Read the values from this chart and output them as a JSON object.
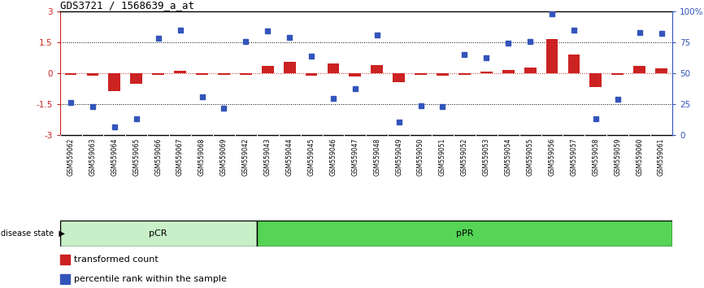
{
  "title": "GDS3721 / 1568639_a_at",
  "samples": [
    "GSM559062",
    "GSM559063",
    "GSM559064",
    "GSM559065",
    "GSM559066",
    "GSM559067",
    "GSM559068",
    "GSM559069",
    "GSM559042",
    "GSM559043",
    "GSM559044",
    "GSM559045",
    "GSM559046",
    "GSM559047",
    "GSM559048",
    "GSM559049",
    "GSM559050",
    "GSM559051",
    "GSM559052",
    "GSM559053",
    "GSM559054",
    "GSM559055",
    "GSM559056",
    "GSM559057",
    "GSM559058",
    "GSM559059",
    "GSM559060",
    "GSM559061"
  ],
  "bar_values": [
    -0.05,
    -0.1,
    -0.85,
    -0.5,
    -0.05,
    0.12,
    -0.05,
    -0.05,
    -0.05,
    0.35,
    0.55,
    -0.1,
    0.5,
    -0.15,
    0.42,
    -0.42,
    -0.05,
    -0.12,
    -0.05,
    0.1,
    0.18,
    0.28,
    1.65,
    0.9,
    -0.65,
    -0.05,
    0.35,
    0.25
  ],
  "dot_values": [
    -1.4,
    -1.6,
    -2.6,
    -2.2,
    1.7,
    2.1,
    -1.15,
    -1.7,
    1.55,
    2.05,
    1.75,
    0.85,
    -1.2,
    -0.75,
    1.85,
    -2.35,
    -1.55,
    -1.6,
    0.9,
    0.75,
    1.45,
    1.55,
    2.9,
    2.1,
    -2.2,
    -1.25,
    2.0,
    1.95
  ],
  "pcr_count": 9,
  "ppr_count": 19,
  "ylim": [
    -3,
    3
  ],
  "yticks_left": [
    -3,
    -1.5,
    0,
    1.5,
    3
  ],
  "ytick_labels_left": [
    "-3",
    "-1.5",
    "0",
    "1.5",
    "3"
  ],
  "yticks_right_pos": [
    -3,
    -1.5,
    0,
    1.5,
    3
  ],
  "ytick_labels_right": [
    "0",
    "25",
    "50",
    "75",
    "100%"
  ],
  "bar_color": "#cc2222",
  "dot_color": "#3355bb",
  "pcr_color": "#c8f0c8",
  "ppr_color": "#55d455",
  "label_bar": "transformed count",
  "label_dot": "percentile rank within the sample"
}
